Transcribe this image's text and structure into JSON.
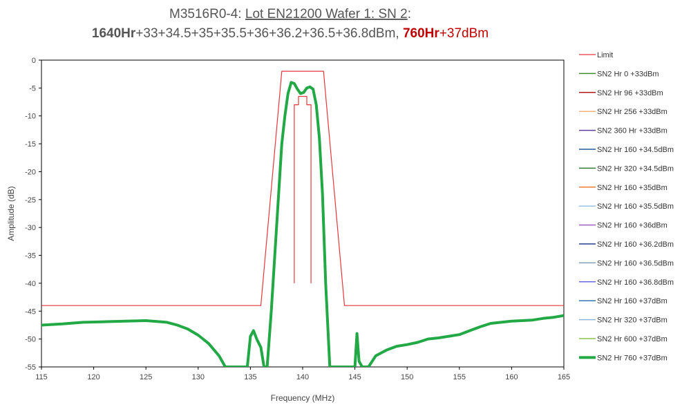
{
  "chart_data": {
    "type": "line",
    "title_line1": {
      "prefix": "M3516R0-4: ",
      "underlined": "Lot EN21200 Wafer 1: SN 2",
      "suffix": ":"
    },
    "title_line2": {
      "hours_a": "1640Hr",
      "powers_a": "+33+34.5+35+35.5+36+36.2+36.5+36.8dBm, ",
      "hours_b": "760Hr",
      "powers_b": "+37dBm"
    },
    "xlabel": "Frequency (MHz)",
    "ylabel": "Amplitude (dB)",
    "xlim": [
      115,
      165
    ],
    "ylim": [
      -55,
      0
    ],
    "x_ticks": [
      115,
      120,
      125,
      130,
      135,
      140,
      145,
      150,
      155,
      160,
      165
    ],
    "y_ticks": [
      0,
      -5,
      -10,
      -15,
      -20,
      -25,
      -30,
      -35,
      -40,
      -45,
      -50,
      -55
    ],
    "limit_outer": {
      "x": [
        115,
        136,
        138,
        142,
        144,
        165
      ],
      "y": [
        -44,
        -44,
        -2,
        -2,
        -44,
        -44
      ]
    },
    "limit_inner_left": {
      "x": [
        139.2,
        139.2,
        139.6,
        139.6,
        140
      ],
      "y": [
        -40,
        -8,
        -8,
        -6.5,
        -6.5
      ]
    },
    "limit_inner_right": {
      "x": [
        140,
        140.4,
        140.4,
        140.8,
        140.8
      ],
      "y": [
        -6.5,
        -6.5,
        -8,
        -8,
        -40
      ]
    },
    "response": {
      "x": [
        115,
        117,
        119,
        121,
        123,
        125,
        127,
        128,
        129,
        130,
        131,
        132,
        132.6,
        133,
        134,
        134.7,
        135,
        135.3,
        135.6,
        136,
        136.3,
        136.6,
        137,
        137.5,
        138,
        138.3,
        138.6,
        138.9,
        139.2,
        139.5,
        139.8,
        140.1,
        140.4,
        140.7,
        141,
        141.3,
        141.6,
        141.9,
        142.2,
        142.6,
        143,
        145,
        145.2,
        145.4,
        145.7,
        146.3,
        147,
        148,
        149,
        150,
        151,
        152,
        153,
        154,
        155,
        156,
        157,
        158,
        159,
        160,
        161,
        162,
        163,
        164,
        165
      ],
      "y": [
        -47.5,
        -47.3,
        -47,
        -46.9,
        -46.8,
        -46.7,
        -47,
        -47.5,
        -48.2,
        -49.3,
        -50.8,
        -53,
        -55,
        -55,
        -55,
        -55,
        -49.5,
        -48.5,
        -50,
        -51.5,
        -55,
        -55,
        -45,
        -30,
        -15,
        -10,
        -6,
        -4,
        -4.2,
        -5.2,
        -6,
        -5.8,
        -5,
        -4.8,
        -5.2,
        -8,
        -14,
        -24,
        -40,
        -55,
        -55,
        -55,
        -49,
        -54,
        -55,
        -55,
        -53,
        -52,
        -51.3,
        -51,
        -50.6,
        -50,
        -49.8,
        -49.5,
        -49.2,
        -48.5,
        -47.8,
        -47.2,
        -47,
        -46.8,
        -46.7,
        -46.6,
        -46.3,
        -46.1,
        -45.8
      ]
    },
    "legend": [
      {
        "label": "Limit",
        "color": "#e8353b",
        "width": 1.2
      },
      {
        "label": "SN2 Hr 0 +33dBm",
        "color": "#3e8e2e",
        "width": 1.5
      },
      {
        "label": "SN2 Hr 96 +33dBm",
        "color": "#b01818",
        "width": 1.5
      },
      {
        "label": "SN2 Hr 256 +33dBm",
        "color": "#f5b07a",
        "width": 1.5
      },
      {
        "label": "SN2 360 Hr +33dBm",
        "color": "#5a3c9c",
        "width": 1.5
      },
      {
        "label": "SN2 Hr 160 +34.5dBm",
        "color": "#1f5c9c",
        "width": 1.5
      },
      {
        "label": "SN2 Hr 320 +34.5dBm",
        "color": "#2e7d32",
        "width": 1.5
      },
      {
        "label": "SN2 Hr 160 +35dBm",
        "color": "#ef7d31",
        "width": 1.5
      },
      {
        "label": "SN2 Hr 160 +35.5dBm",
        "color": "#9cc3e6",
        "width": 1.5
      },
      {
        "label": "SN2 Hr 160 +36dBm",
        "color": "#9b5fc4",
        "width": 1.5
      },
      {
        "label": "SN2 Hr 160 +36.2dBm",
        "color": "#23408e",
        "width": 1.5
      },
      {
        "label": "SN2 Hr 160 +36.5dBm",
        "color": "#7f9fb8",
        "width": 1.5
      },
      {
        "label": "SN2 Hr 160 +36.8dBm",
        "color": "#6a6ae0",
        "width": 1.5
      },
      {
        "label": "SN2 Hr 160 +37dBm",
        "color": "#2e75b6",
        "width": 1.5
      },
      {
        "label": "SN2 Hr 320 +37dBm",
        "color": "#8fb4d9",
        "width": 1.5
      },
      {
        "label": "SN2 Hr 600 +37dBm",
        "color": "#8bc34a",
        "width": 1.5
      },
      {
        "label": "SN2 Hr 760 +37dBm",
        "color": "#22a845",
        "width": 4
      }
    ],
    "colors": {
      "limit": "#e8353b",
      "response": "#22a845",
      "axis": "#000000"
    }
  }
}
